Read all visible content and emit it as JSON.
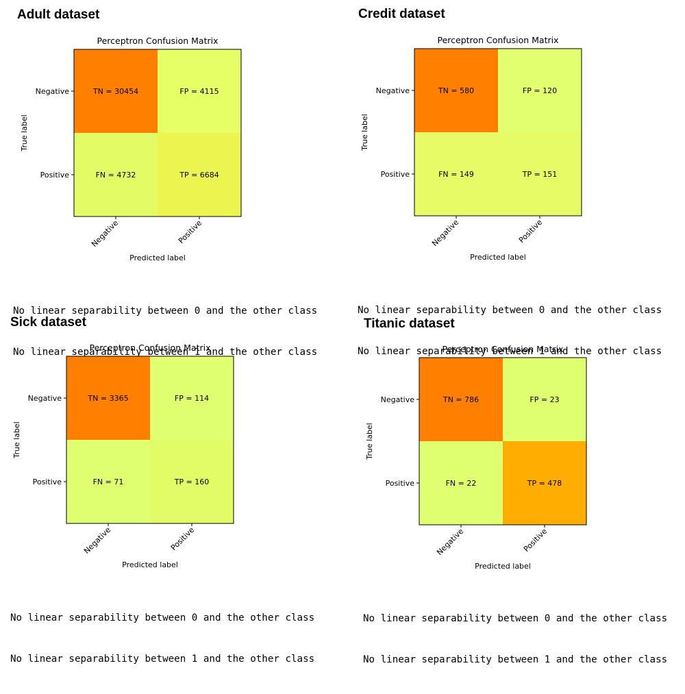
{
  "colors": {
    "axis": "#000000",
    "text": "#000000"
  },
  "chart_data": [
    {
      "type": "heatmap",
      "dataset_title": "Adult dataset",
      "title": "Perceptron Confusion Matrix",
      "xlabel": "Predicted label",
      "ylabel": "True label",
      "row_labels": [
        "Negative",
        "Positive"
      ],
      "col_labels": [
        "Negative",
        "Positive"
      ],
      "cells": [
        [
          {
            "label": "TN",
            "value": 30454,
            "color": "#ff8000"
          },
          {
            "label": "FP",
            "value": 4115,
            "color": "#e6ff66"
          }
        ],
        [
          {
            "label": "FN",
            "value": 4732,
            "color": "#e3fc66"
          },
          {
            "label": "TP",
            "value": 6684,
            "color": "#ecf450"
          }
        ]
      ],
      "output_lines": [
        "No linear separability between 0 and the other class",
        "No linear separability between 1 and the other class"
      ]
    },
    {
      "type": "heatmap",
      "dataset_title": "Credit dataset",
      "title": "Perceptron Confusion Matrix",
      "xlabel": "Predicted label",
      "ylabel": "True label",
      "row_labels": [
        "Negative",
        "Positive"
      ],
      "col_labels": [
        "Negative",
        "Positive"
      ],
      "cells": [
        [
          {
            "label": "TN",
            "value": 580,
            "color": "#ff8000"
          },
          {
            "label": "FP",
            "value": 120,
            "color": "#e2ff6e"
          }
        ],
        [
          {
            "label": "FN",
            "value": 149,
            "color": "#e6fb66"
          },
          {
            "label": "TP",
            "value": 151,
            "color": "#e6fb66"
          }
        ]
      ],
      "output_lines": [
        "No linear separability between 0 and the other class",
        "No linear separability between 1 and the other class"
      ]
    },
    {
      "type": "heatmap",
      "dataset_title": "Sick dataset",
      "title": "Perceptron Confusion Matrix",
      "xlabel": "Predicted label",
      "ylabel": "True label",
      "row_labels": [
        "Negative",
        "Positive"
      ],
      "col_labels": [
        "Negative",
        "Positive"
      ],
      "cells": [
        [
          {
            "label": "TN",
            "value": 3365,
            "color": "#ff8000"
          },
          {
            "label": "FP",
            "value": 114,
            "color": "#e0ff70"
          }
        ],
        [
          {
            "label": "FN",
            "value": 71,
            "color": "#e0ff70"
          },
          {
            "label": "TP",
            "value": 160,
            "color": "#e2fc68"
          }
        ]
      ],
      "output_lines": [
        "No linear separability between 0 and the other class",
        "No linear separability between 1 and the other class"
      ]
    },
    {
      "type": "heatmap",
      "dataset_title": "Titanic dataset",
      "title": "Perceptron Confusion Matrix",
      "xlabel": "Predicted label",
      "ylabel": "True label",
      "row_labels": [
        "Negative",
        "Positive"
      ],
      "col_labels": [
        "Negative",
        "Positive"
      ],
      "cells": [
        [
          {
            "label": "TN",
            "value": 786,
            "color": "#ff8000"
          },
          {
            "label": "FP",
            "value": 23,
            "color": "#e0ff70"
          }
        ],
        [
          {
            "label": "FN",
            "value": 22,
            "color": "#e0ff70"
          },
          {
            "label": "TP",
            "value": 478,
            "color": "#ffae00"
          }
        ]
      ],
      "output_lines": [
        "No linear separability between 0 and the other class",
        "No linear separability between 1 and the other class"
      ]
    }
  ]
}
